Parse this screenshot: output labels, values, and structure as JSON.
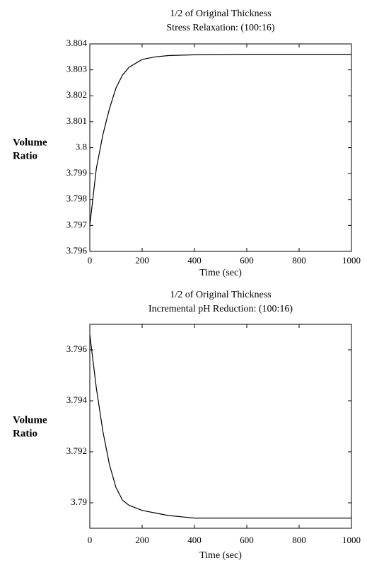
{
  "chart_data": [
    {
      "type": "line",
      "title": "1/2  of Original Thickness",
      "subtitle": "Stress Relaxation:  (100:16)",
      "xlabel": "Time (sec)",
      "ylabel": [
        "Volume",
        "Ratio"
      ],
      "x": [
        0,
        25,
        50,
        75,
        100,
        125,
        150,
        200,
        250,
        300,
        400,
        600,
        1000
      ],
      "values": [
        3.797,
        3.7992,
        3.8005,
        3.8015,
        3.8023,
        3.8028,
        3.8031,
        3.8034,
        3.8035,
        3.80355,
        3.80358,
        3.8036,
        3.8036
      ],
      "color": "#000000",
      "xlim": [
        0,
        1000
      ],
      "xticks": [
        0,
        200,
        400,
        600,
        800,
        1000
      ],
      "ylim": [
        3.796,
        3.804
      ],
      "yticks": [
        3.796,
        3.797,
        3.798,
        3.799,
        3.8,
        3.801,
        3.802,
        3.803,
        3.804
      ]
    },
    {
      "type": "line",
      "title": "1/2  of Original Thickness",
      "subtitle": "Incremental pH Reduction:  (100:16)",
      "xlabel": "Time (sec)",
      "ylabel": [
        "Volume",
        "Ratio"
      ],
      "x": [
        0,
        25,
        50,
        75,
        100,
        125,
        150,
        200,
        250,
        300,
        400,
        600,
        1000
      ],
      "values": [
        3.7966,
        3.7945,
        3.7928,
        3.7915,
        3.7906,
        3.7901,
        3.7899,
        3.7897,
        3.7896,
        3.7895,
        3.7894,
        3.7894,
        3.7894
      ],
      "color": "#000000",
      "xlim": [
        0,
        1000
      ],
      "xticks": [
        0,
        200,
        400,
        600,
        800,
        1000
      ],
      "ylim": [
        3.789,
        3.797
      ],
      "yticks": [
        3.79,
        3.792,
        3.794,
        3.796
      ]
    }
  ]
}
